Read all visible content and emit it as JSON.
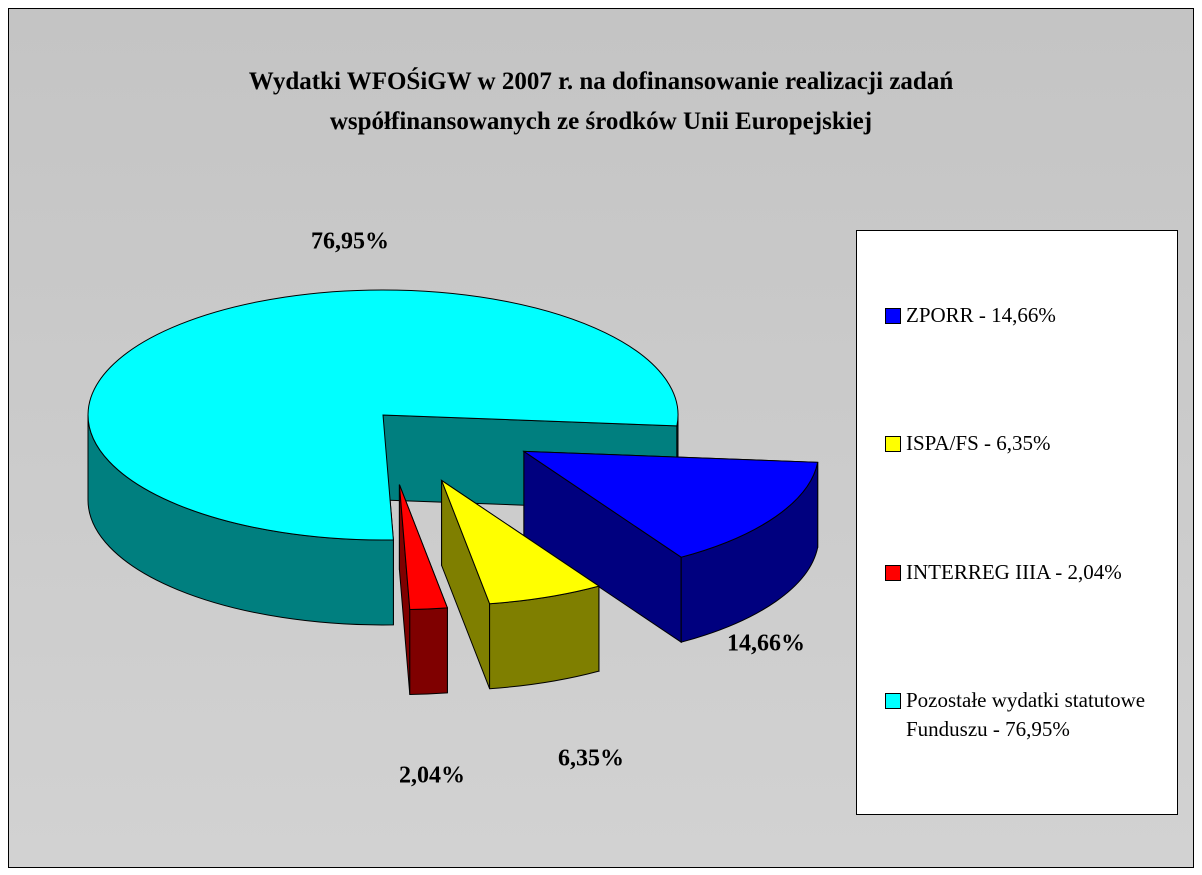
{
  "chart_data": {
    "type": "pie3d",
    "title": "Wydatki WFOŚiGW w 2007 r. na dofinansowanie realizacji zadań współfinansowanych ze środków Unii Europejskiej",
    "categories": [
      "ZPORR - 14,66%",
      "ISPA/FS - 6,35%",
      "INTERREG IIIA - 2,04%",
      "Pozostałe wydatki statutowe Funduszu - 76,95%"
    ],
    "values": [
      14.66,
      6.35,
      2.04,
      76.95
    ],
    "value_labels": [
      "14,66%",
      "6,35%",
      "2,04%",
      "76,95%"
    ],
    "colors": [
      "#0000ff",
      "#ffff00",
      "#ff0000",
      "#00ffff"
    ],
    "legend": "right"
  }
}
